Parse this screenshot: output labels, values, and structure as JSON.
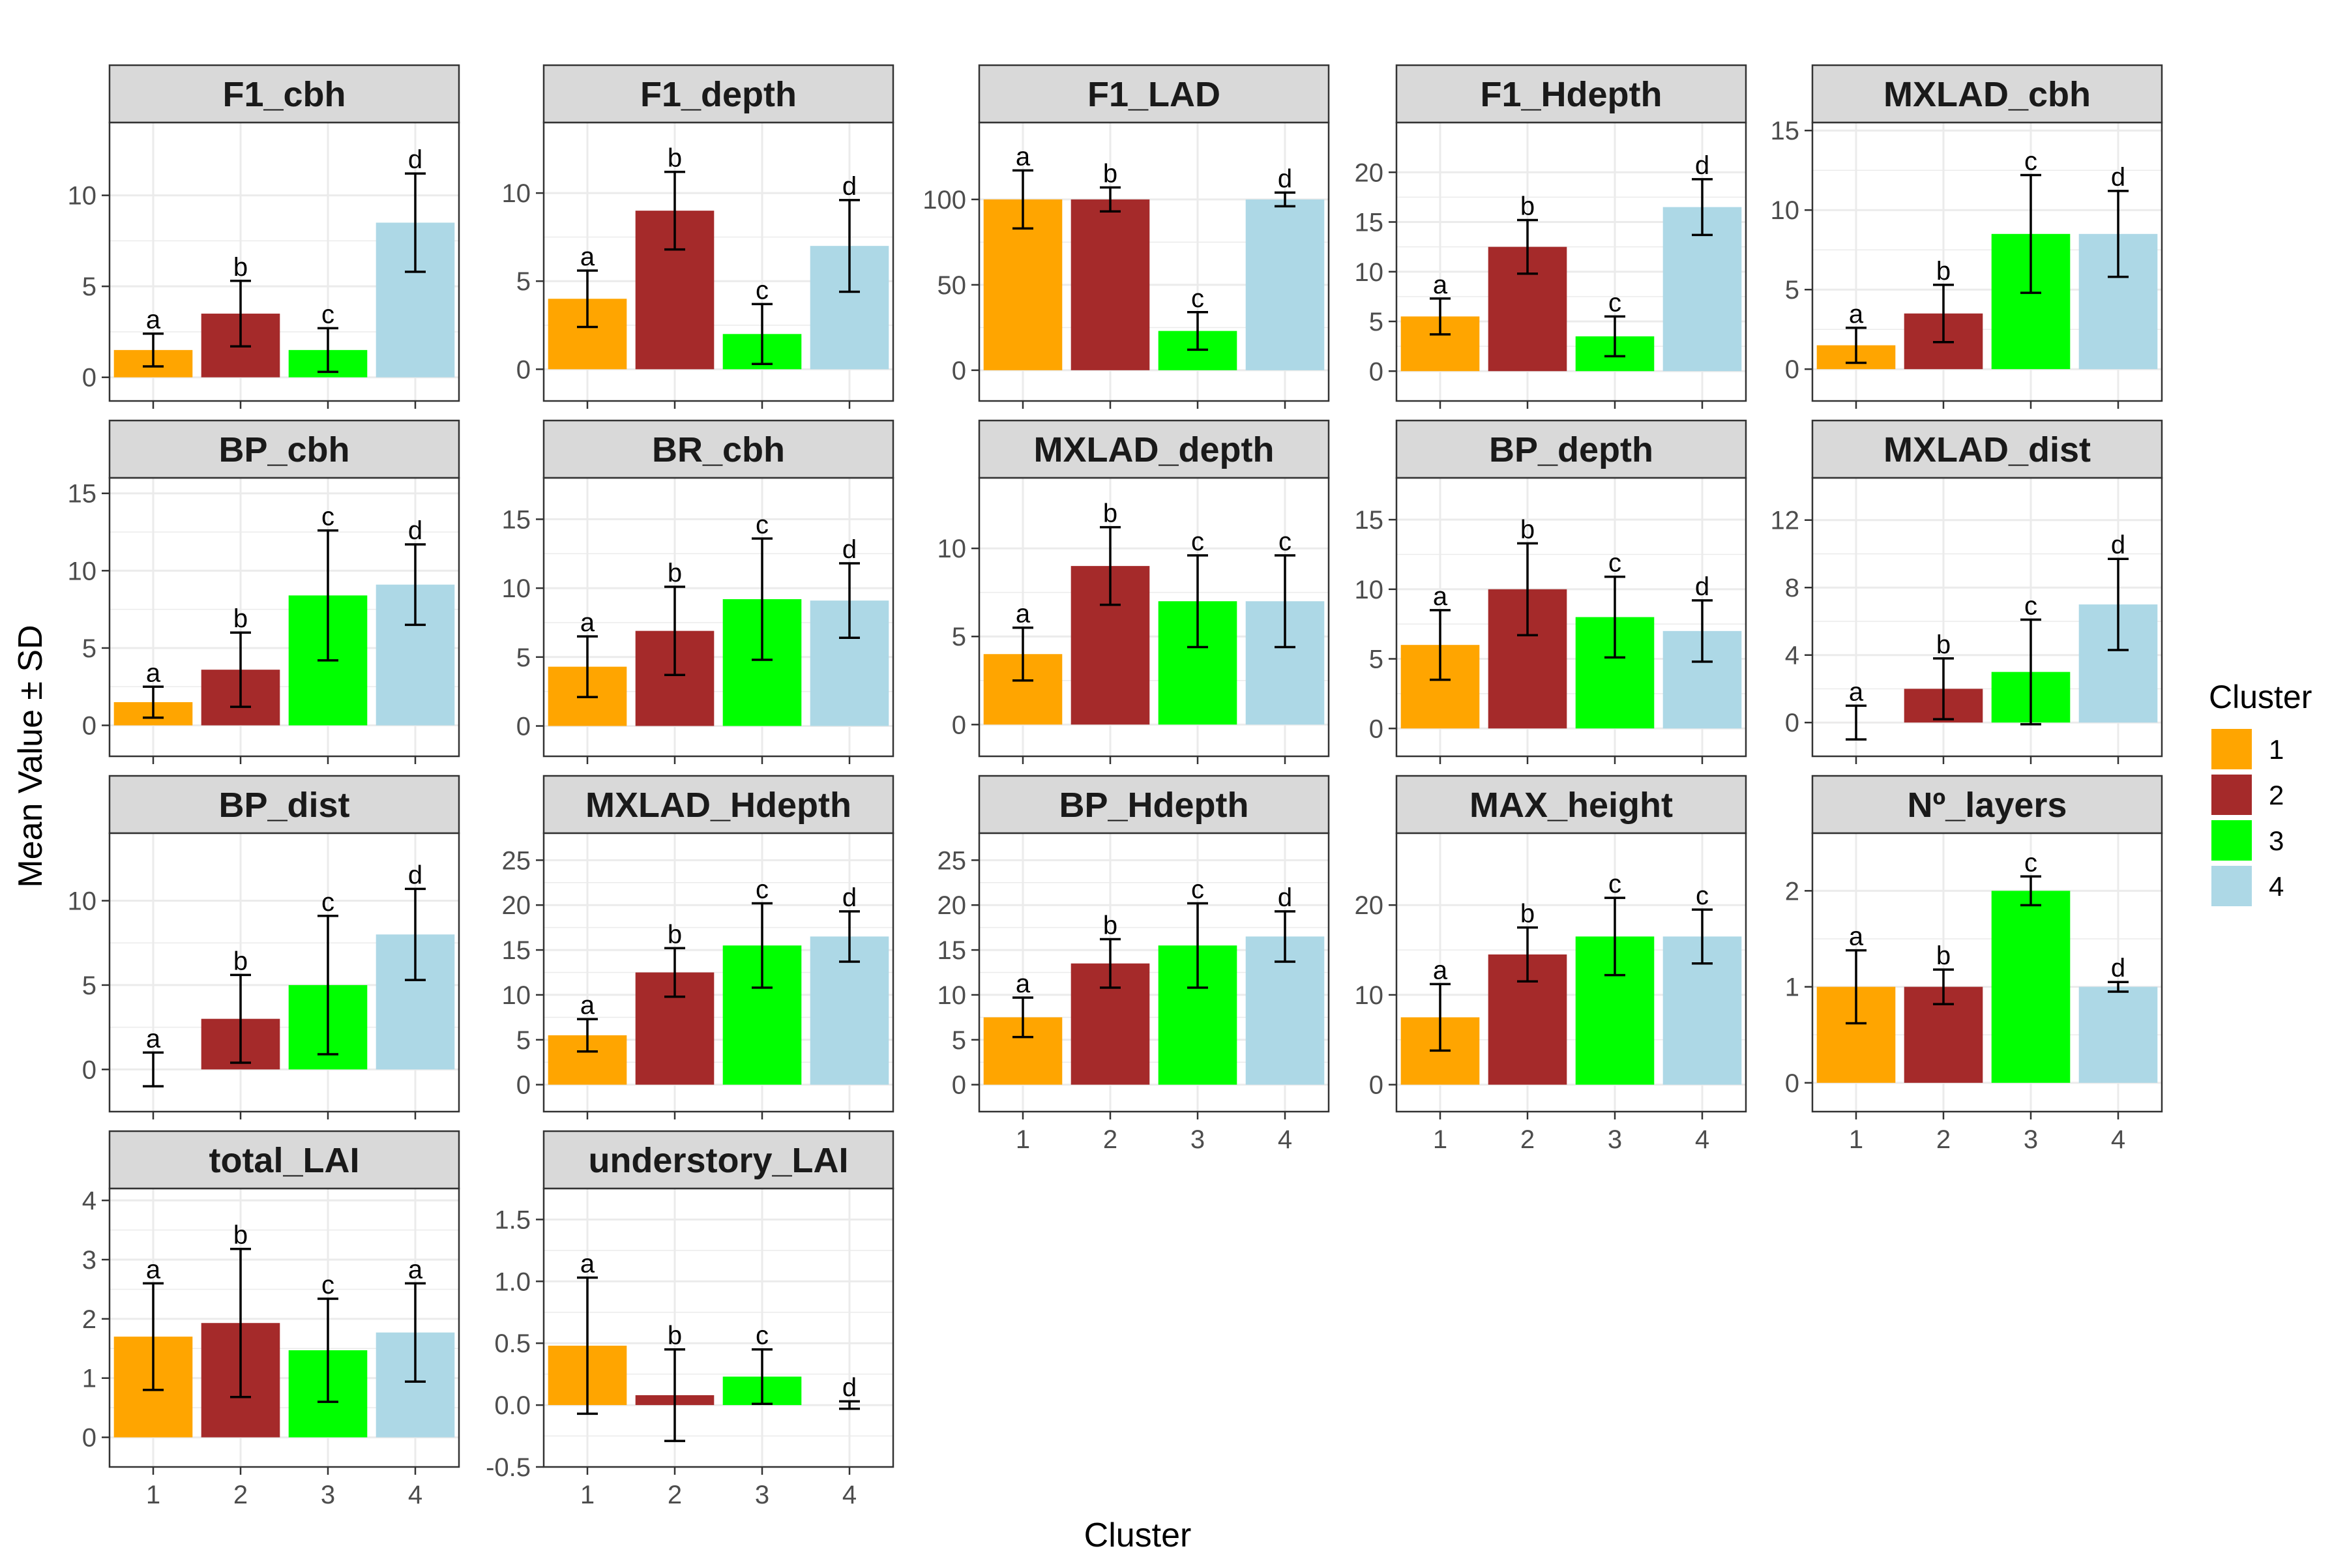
{
  "chart_data": {
    "type": "bar",
    "xlabel": "Cluster",
    "ylabel": "Mean Value ± SD",
    "categories": [
      "1",
      "2",
      "3",
      "4"
    ],
    "legend": {
      "title": "Cluster",
      "position": "right",
      "entries": [
        {
          "label": "1",
          "color": "#FFA500"
        },
        {
          "label": "2",
          "color": "#A52A2A"
        },
        {
          "label": "3",
          "color": "#00FF00"
        },
        {
          "label": "4",
          "color": "#ADD8E6"
        }
      ]
    },
    "grid": true,
    "panels": [
      {
        "title": "F1_cbh",
        "ylim": [
          -1.3,
          14
        ],
        "yticks": [
          0,
          5,
          10
        ],
        "means": [
          1.5,
          3.5,
          1.5,
          8.5
        ],
        "sd": [
          0.9,
          1.8,
          1.2,
          2.7
        ],
        "letters": [
          "a",
          "b",
          "c",
          "d"
        ],
        "show_x": false
      },
      {
        "title": "F1_depth",
        "ylim": [
          -1.8,
          14
        ],
        "yticks": [
          0,
          5,
          10
        ],
        "means": [
          4,
          9,
          2,
          7
        ],
        "sd": [
          1.6,
          2.2,
          1.7,
          2.6
        ],
        "letters": [
          "a",
          "b",
          "c",
          "d"
        ],
        "show_x": false
      },
      {
        "title": "F1_LAD",
        "ylim": [
          -18,
          145
        ],
        "yticks": [
          0,
          50,
          100
        ],
        "means": [
          100,
          100,
          23,
          100
        ],
        "sd": [
          17,
          7,
          11,
          4
        ],
        "letters": [
          "a",
          "b",
          "c",
          "d"
        ],
        "show_x": false
      },
      {
        "title": "F1_Hdepth",
        "ylim": [
          -3,
          25
        ],
        "yticks": [
          0,
          5,
          10,
          15,
          20
        ],
        "means": [
          5.5,
          12.5,
          3.5,
          16.5
        ],
        "sd": [
          1.8,
          2.7,
          2,
          2.8
        ],
        "letters": [
          "a",
          "b",
          "c",
          "d"
        ],
        "show_x": false
      },
      {
        "title": "MXLAD_cbh",
        "ylim": [
          -2,
          15.5
        ],
        "yticks": [
          0,
          5,
          10,
          15
        ],
        "means": [
          1.5,
          3.5,
          8.5,
          8.5
        ],
        "sd": [
          1.1,
          1.8,
          3.7,
          2.7
        ],
        "letters": [
          "a",
          "b",
          "c",
          "d"
        ],
        "show_x": false
      },
      {
        "title": "BP_cbh",
        "ylim": [
          -2,
          16
        ],
        "yticks": [
          0,
          5,
          10,
          15
        ],
        "means": [
          1.5,
          3.6,
          8.4,
          9.1
        ],
        "sd": [
          1,
          2.4,
          4.2,
          2.6
        ],
        "letters": [
          "a",
          "b",
          "c",
          "d"
        ],
        "show_x": false
      },
      {
        "title": "BR_cbh",
        "ylim": [
          -2.2,
          18
        ],
        "yticks": [
          0,
          5,
          10,
          15
        ],
        "means": [
          4.3,
          6.9,
          9.2,
          9.1
        ],
        "sd": [
          2.2,
          3.2,
          4.4,
          2.7
        ],
        "letters": [
          "a",
          "b",
          "c",
          "d"
        ],
        "show_x": false
      },
      {
        "title": "MXLAD_depth",
        "ylim": [
          -1.8,
          14
        ],
        "yticks": [
          0,
          5,
          10
        ],
        "means": [
          4,
          9,
          7,
          7
        ],
        "sd": [
          1.5,
          2.2,
          2.6,
          2.6
        ],
        "letters": [
          "a",
          "b",
          "c",
          "c"
        ],
        "show_x": false
      },
      {
        "title": "BP_depth",
        "ylim": [
          -2,
          18
        ],
        "yticks": [
          0,
          5,
          10,
          15
        ],
        "means": [
          6,
          10,
          8,
          7
        ],
        "sd": [
          2.5,
          3.3,
          2.9,
          2.2
        ],
        "letters": [
          "a",
          "b",
          "c",
          "d"
        ],
        "show_x": false
      },
      {
        "title": "MXLAD_dist",
        "ylim": [
          -2,
          14.5
        ],
        "yticks": [
          0,
          4,
          8,
          12
        ],
        "means": [
          0,
          2,
          3,
          7
        ],
        "sd": [
          1,
          1.8,
          3.1,
          2.7
        ],
        "letters": [
          "a",
          "b",
          "c",
          "d"
        ],
        "show_x": false
      },
      {
        "title": "BP_dist",
        "ylim": [
          -2.5,
          14
        ],
        "yticks": [
          0,
          5,
          10
        ],
        "means": [
          0,
          3,
          5,
          8
        ],
        "sd": [
          1,
          2.6,
          4.1,
          2.7
        ],
        "letters": [
          "a",
          "b",
          "c",
          "d"
        ],
        "show_x": false
      },
      {
        "title": "MXLAD_Hdepth",
        "ylim": [
          -3,
          28
        ],
        "yticks": [
          0,
          5,
          10,
          15,
          20,
          25
        ],
        "means": [
          5.5,
          12.5,
          15.5,
          16.5
        ],
        "sd": [
          1.8,
          2.7,
          4.7,
          2.8
        ],
        "letters": [
          "a",
          "b",
          "c",
          "d"
        ],
        "show_x": false
      },
      {
        "title": "BP_Hdepth",
        "ylim": [
          -3,
          28
        ],
        "yticks": [
          0,
          5,
          10,
          15,
          20,
          25
        ],
        "means": [
          7.5,
          13.5,
          15.5,
          16.5
        ],
        "sd": [
          2.2,
          2.7,
          4.7,
          2.8
        ],
        "letters": [
          "a",
          "b",
          "c",
          "d"
        ],
        "show_x": true
      },
      {
        "title": "MAX_height",
        "ylim": [
          -3,
          28
        ],
        "yticks": [
          0,
          10,
          20
        ],
        "means": [
          7.5,
          14.5,
          16.5,
          16.5
        ],
        "sd": [
          3.7,
          3,
          4.3,
          3
        ],
        "letters": [
          "a",
          "b",
          "c",
          "c"
        ],
        "show_x": true
      },
      {
        "title": "Nº_layers",
        "ylim": [
          -0.3,
          2.6
        ],
        "yticks": [
          0,
          1,
          2
        ],
        "means": [
          1,
          1,
          2,
          1
        ],
        "sd": [
          0.38,
          0.18,
          0.15,
          0.05
        ],
        "letters": [
          "a",
          "b",
          "c",
          "d"
        ],
        "show_x": true
      },
      {
        "title": "total_LAI",
        "ylim": [
          -0.5,
          4.2
        ],
        "yticks": [
          0,
          1,
          2,
          3,
          4
        ],
        "means": [
          1.7,
          1.93,
          1.47,
          1.77
        ],
        "sd": [
          0.9,
          1.25,
          0.87,
          0.83
        ],
        "letters": [
          "a",
          "b",
          "c",
          "a"
        ],
        "show_x": true
      },
      {
        "title": "understory_LAI",
        "ylim": [
          -0.5,
          1.75
        ],
        "yticks": [
          -0.5,
          0.0,
          0.5,
          1.0,
          1.5
        ],
        "ytick_labels": [
          "-0.5",
          "0.0",
          "0.5",
          "1.0",
          "1.5"
        ],
        "means": [
          0.48,
          0.08,
          0.23,
          0
        ],
        "sd": [
          0.55,
          0.37,
          0.22,
          0.03
        ],
        "letters": [
          "a",
          "b",
          "c",
          "d"
        ],
        "show_x": true
      }
    ]
  }
}
